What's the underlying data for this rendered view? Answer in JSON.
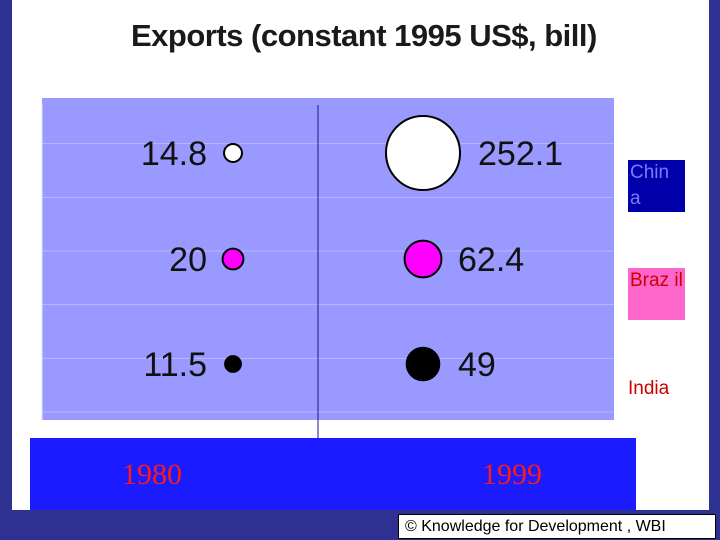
{
  "title": "Exports (constant 1995 US$, bill)",
  "footer": "© Knowledge for Development , WBI",
  "colors": {
    "background": "#2e3192",
    "plot": "#9999ff",
    "year_bar": "#1b1bff",
    "year_text": "#ff1a1a",
    "china": "#ffffff",
    "brazil": "#ff00ff",
    "india": "#000000"
  },
  "chart_data": {
    "type": "scatter",
    "subtype": "bubble",
    "title": "Exports (constant 1995 US$, bill)",
    "categories": [
      "1980",
      "1999"
    ],
    "series": [
      {
        "name": "China",
        "values": [
          14.8,
          252.1
        ],
        "labels": [
          "14.8",
          "252.1"
        ],
        "color": "#ffffff"
      },
      {
        "name": "Brazil",
        "values": [
          20,
          62.4
        ],
        "labels": [
          "20",
          "62.4"
        ],
        "color": "#ff00ff"
      },
      {
        "name": "India",
        "values": [
          11.5,
          49
        ],
        "labels": [
          "11.5",
          "49"
        ],
        "color": "#000000"
      }
    ],
    "legend": {
      "position": "right",
      "entries": [
        "China",
        "Brazil",
        "India"
      ],
      "display": [
        "Chin a",
        "Braz il",
        "India"
      ]
    },
    "grid": true
  }
}
